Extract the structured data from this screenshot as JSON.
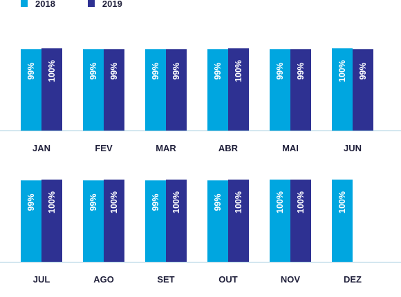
{
  "chart_data": {
    "type": "bar",
    "legend_position": "top-left",
    "grid": false,
    "ylim": [
      0,
      100
    ],
    "series": [
      {
        "name": "2018",
        "color": "#00a6e0"
      },
      {
        "name": "2019",
        "color": "#2e3192"
      }
    ],
    "panels": [
      {
        "categories": [
          "JAN",
          "FEV",
          "MAR",
          "ABR",
          "MAI",
          "JUN"
        ],
        "values": [
          [
            99,
            99,
            99,
            99,
            99,
            100
          ],
          [
            100,
            99,
            99,
            100,
            99,
            99
          ]
        ],
        "labels": [
          [
            "99%",
            "99%",
            "99%",
            "99%",
            "99%",
            "100%"
          ],
          [
            "100%",
            "99%",
            "99%",
            "100%",
            "99%",
            "99%"
          ]
        ]
      },
      {
        "categories": [
          "JUL",
          "AGO",
          "SET",
          "OUT",
          "NOV",
          "DEZ"
        ],
        "values": [
          [
            99,
            99,
            99,
            99,
            100,
            100
          ],
          [
            100,
            100,
            100,
            100,
            100,
            null
          ]
        ],
        "labels": [
          [
            "99%",
            "99%",
            "99%",
            "99%",
            "100%",
            "100%"
          ],
          [
            "100%",
            "100%",
            "100%",
            "100%",
            "100%",
            null
          ]
        ]
      }
    ]
  }
}
